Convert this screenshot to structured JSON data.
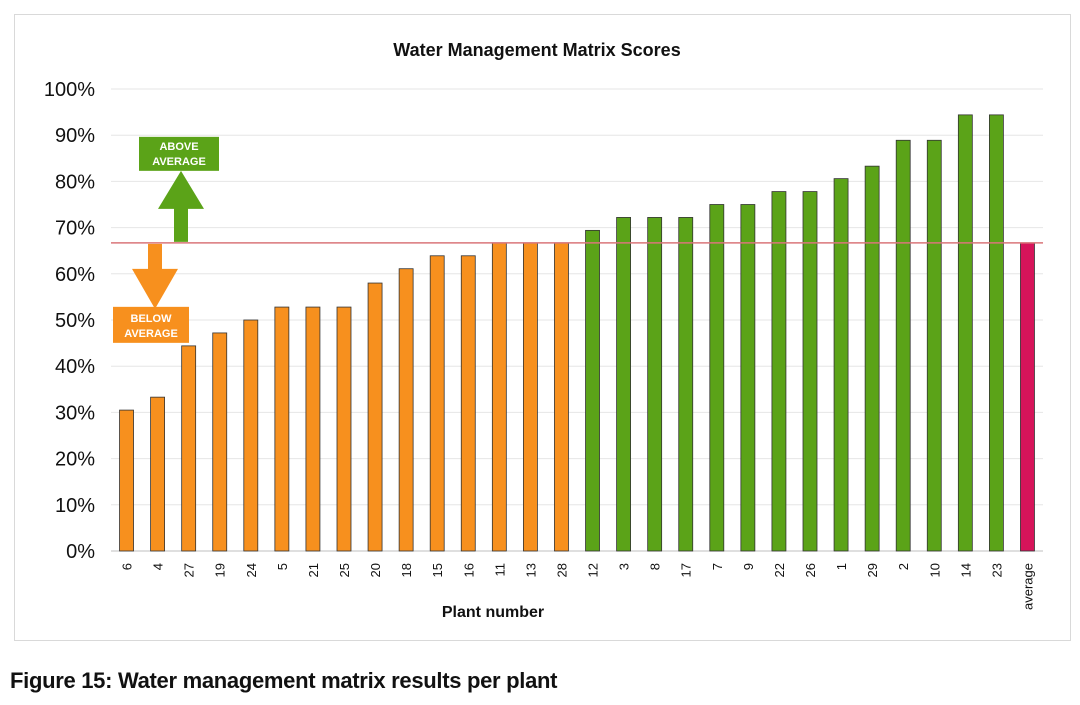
{
  "figure_caption": "Figure 15: Water management matrix results per plant",
  "chart_data": {
    "type": "bar",
    "title": "Water Management Matrix Scores",
    "xlabel": "Plant number",
    "ylabel": "",
    "ylim": [
      0,
      100
    ],
    "ytick_step": 10,
    "ytick_suffix": "%",
    "grid": true,
    "average_value": 66.7,
    "categories": [
      "6",
      "4",
      "27",
      "19",
      "24",
      "5",
      "21",
      "25",
      "20",
      "18",
      "15",
      "16",
      "11",
      "13",
      "28",
      "12",
      "3",
      "8",
      "17",
      "7",
      "9",
      "22",
      "26",
      "1",
      "29",
      "2",
      "10",
      "14",
      "23",
      "average"
    ],
    "values": [
      30.5,
      33.3,
      44.4,
      47.2,
      50.0,
      52.8,
      52.8,
      52.8,
      58.0,
      61.1,
      63.9,
      63.9,
      66.7,
      66.7,
      66.7,
      69.4,
      72.2,
      72.2,
      72.2,
      75.0,
      75.0,
      77.8,
      77.8,
      80.6,
      83.3,
      88.9,
      88.9,
      94.4,
      94.4,
      66.7
    ],
    "bar_groups": [
      "below",
      "below",
      "below",
      "below",
      "below",
      "below",
      "below",
      "below",
      "below",
      "below",
      "below",
      "below",
      "below",
      "below",
      "below",
      "above",
      "above",
      "above",
      "above",
      "above",
      "above",
      "above",
      "above",
      "above",
      "above",
      "above",
      "above",
      "above",
      "above",
      "average"
    ],
    "colors": {
      "below": "#f7901e",
      "above": "#5ba318",
      "average": "#d6145a",
      "average_line": "#d9767a",
      "grid": "#e6e6e6",
      "bar_edge": "#333333"
    },
    "annotations": {
      "above_label": [
        "ABOVE",
        "AVERAGE"
      ],
      "below_label": [
        "BELOW",
        "AVERAGE"
      ]
    }
  }
}
